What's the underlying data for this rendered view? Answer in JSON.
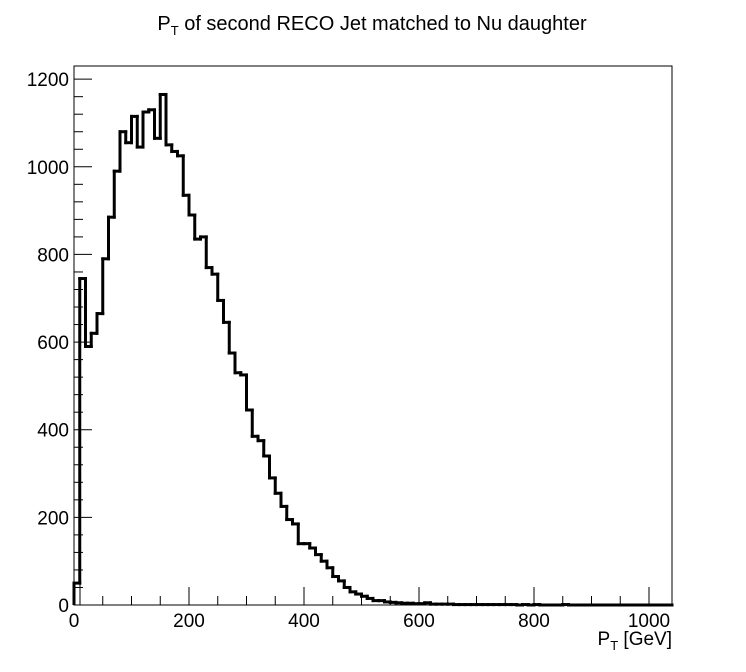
{
  "chart_data": {
    "type": "histogram",
    "title": {
      "main": "P",
      "sub": "T",
      "rest": " of second RECO Jet matched to Nu daughter"
    },
    "xlabel": {
      "main": "P",
      "sub": "T",
      "rest": " [GeV]"
    },
    "ylabel": "",
    "xlim": [
      0,
      1040
    ],
    "ylim": [
      0,
      1230
    ],
    "x_ticks": [
      0,
      200,
      400,
      600,
      800,
      1000
    ],
    "y_ticks": [
      0,
      200,
      400,
      600,
      800,
      1000,
      1200
    ],
    "grid": false,
    "line_color": "#000000",
    "bin_width": 10,
    "bin_edges_start": 0,
    "values": [
      50,
      745,
      590,
      620,
      665,
      790,
      885,
      990,
      1080,
      1055,
      1115,
      1045,
      1125,
      1130,
      1065,
      1165,
      1050,
      1035,
      1025,
      935,
      890,
      835,
      840,
      770,
      755,
      695,
      645,
      575,
      530,
      525,
      445,
      385,
      375,
      340,
      290,
      255,
      225,
      195,
      185,
      140,
      140,
      130,
      115,
      100,
      85,
      65,
      55,
      40,
      30,
      25,
      20,
      15,
      10,
      10,
      7,
      6,
      5,
      4,
      4,
      3,
      3,
      5,
      2,
      2,
      2,
      2,
      1,
      1,
      1,
      1,
      1,
      1,
      1,
      1,
      1,
      1,
      1,
      0,
      1,
      0,
      1,
      0,
      0,
      0,
      0,
      1,
      0,
      0,
      0,
      0,
      0,
      0,
      0,
      0,
      0,
      0,
      0,
      0,
      0,
      0,
      0,
      0,
      0,
      0
    ]
  }
}
